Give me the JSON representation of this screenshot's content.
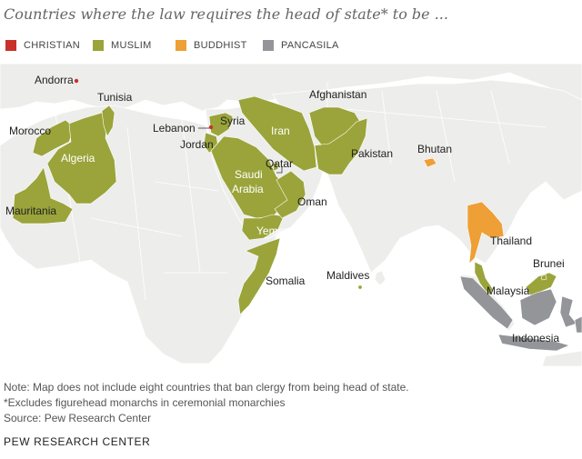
{
  "title": "Countries where the law requires the head of state* to be ...",
  "legend": [
    {
      "label": "CHRISTIAN",
      "color": "#c8312a"
    },
    {
      "label": "MUSLIM",
      "color": "#9aa43a"
    },
    {
      "label": "BUDDHIST",
      "color": "#ee9f35"
    },
    {
      "label": "PANCASILA",
      "color": "#949599"
    }
  ],
  "map": {
    "labels": {
      "andorra": "Andorra",
      "tunisia": "Tunisia",
      "morocco": "Morocco",
      "algeria": "Algeria",
      "mauritania": "Mauritania",
      "lebanon": "Lebanon",
      "syria": "Syria",
      "jordan": "Jordan",
      "saudi_1": "Saudi",
      "saudi_2": "Arabia",
      "iran": "Iran",
      "afghanistan": "Afghanistan",
      "pakistan": "Pakistan",
      "qatar": "Qatar",
      "oman": "Oman",
      "yemen": "Yemen",
      "somalia": "Somalia",
      "maldives": "Maldives",
      "bhutan": "Bhutan",
      "thailand": "Thailand",
      "brunei": "Brunei",
      "malaysia": "Malaysia",
      "indonesia": "Indonesia"
    },
    "colors": {
      "land": "#ededeb",
      "water": "#ffffff",
      "border": "#ffffff"
    }
  },
  "notes": [
    "Note: Map does not include eight countries that ban clergy from being head of state.",
    "*Excludes figurehead monarchs in ceremonial monarchies",
    "Source: Pew Research Center"
  ],
  "brand": "PEW RESEARCH CENTER"
}
